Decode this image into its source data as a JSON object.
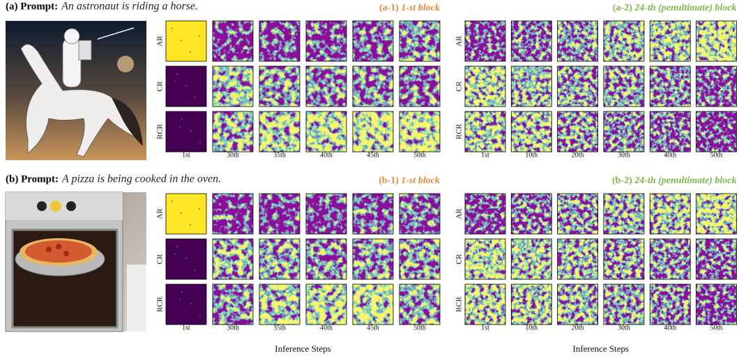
{
  "panels": [
    {
      "label": "(a) Prompt:",
      "prompt": "An astronaut is riding a horse.",
      "blocks": [
        {
          "label": "(a-1)",
          "name": "1-st block",
          "rows": [
            "AR",
            "CR",
            "RCR"
          ],
          "steps": [
            "1st",
            "30th",
            "35th",
            "40th",
            "45th",
            "50th"
          ]
        },
        {
          "label": "(a-2)",
          "name": "24-th (penultimate) block",
          "rows": [
            "AR",
            "CR",
            "RCR"
          ],
          "steps": [
            "1st",
            "10th",
            "20th",
            "30th",
            "40th",
            "50th"
          ]
        }
      ]
    },
    {
      "label": "(b) Prompt:",
      "prompt": "A pizza is being cooked in the oven.",
      "blocks": [
        {
          "label": "(b-1)",
          "name": "1-st block",
          "rows": [
            "AR",
            "CR",
            "RCR"
          ],
          "steps": [
            "1st",
            "30th",
            "35th",
            "40th",
            "45th",
            "50th"
          ]
        },
        {
          "label": "(b-2)",
          "name": "24-th (penultimate) block",
          "rows": [
            "AR",
            "CR",
            "RCR"
          ],
          "steps": [
            "1st",
            "10th",
            "20th",
            "30th",
            "40th",
            "50th"
          ]
        }
      ]
    }
  ],
  "x_label": "Inference Steps"
}
